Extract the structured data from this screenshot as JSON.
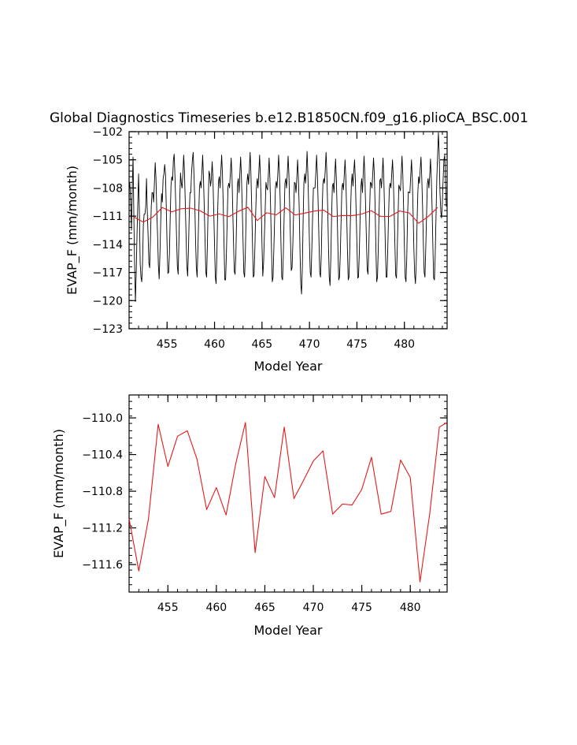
{
  "chart_data": [
    {
      "type": "line",
      "title": "Global Diagnostics Timeseries b.e12.B1850CN.f09_g16.plioCA_BSC.001",
      "xlabel": "Model Year",
      "ylabel": "EVAP_F (mm/month)",
      "xlim": [
        451.0,
        484.5
      ],
      "ylim": [
        -123,
        -102
      ],
      "xticks": [
        455,
        460,
        465,
        470,
        475,
        480
      ],
      "yticks": [
        -123,
        -120,
        -117,
        -114,
        -111,
        -108,
        -105,
        -102
      ],
      "series": [
        {
          "color": "#000000",
          "x_start": 451.0,
          "x_step": 0.08333,
          "values": [
            -108.0,
            -107.5,
            -109.5,
            -112.5,
            -108.0,
            -104.7,
            -111.0,
            -116.3,
            -120.1,
            -117.0,
            -113.0,
            -109.7,
            -106.5,
            -110.5,
            -116.0,
            -117.5,
            -118.0,
            -116.0,
            -112.0,
            -110.8,
            -110.8,
            -110.0,
            -107.0,
            -110.5,
            -113.0,
            -116.0,
            -116.5,
            -113.5,
            -110.0,
            -108.5,
            -108.5,
            -109.5,
            -107.5,
            -105.3,
            -107.0,
            -110.5,
            -113.0,
            -116.2,
            -117.7,
            -115.0,
            -111.5,
            -108.6,
            -109.5,
            -107.0,
            -106.5,
            -105.5,
            -106.5,
            -110.0,
            -114.0,
            -117.1,
            -117.0,
            -115.0,
            -111.0,
            -107.7,
            -106.8,
            -107.2,
            -105.0,
            -104.4,
            -106.8,
            -109.8,
            -113.3,
            -116.4,
            -117.2,
            -113.7,
            -109.5,
            -106.4,
            -107.5,
            -108.0,
            -106.5,
            -104.5,
            -106.2,
            -109.5,
            -113.0,
            -116.3,
            -117.4,
            -114.8,
            -111.0,
            -108.5,
            -108.5,
            -106.3,
            -105.0,
            -104.2,
            -106.5,
            -109.4,
            -113.5,
            -116.5,
            -117.5,
            -114.5,
            -111.0,
            -107.9,
            -107.3,
            -108.0,
            -106.4,
            -104.5,
            -106.8,
            -110.0,
            -113.5,
            -117.0,
            -117.5,
            -114.0,
            -109.7,
            -106.2,
            -106.6,
            -107.8,
            -107.0,
            -105.2,
            -107.0,
            -110.5,
            -114.0,
            -117.5,
            -118.2,
            -115.0,
            -110.5,
            -107.3,
            -106.8,
            -108.0,
            -106.2,
            -104.5,
            -106.5,
            -109.7,
            -114.0,
            -117.8,
            -117.8,
            -115.0,
            -111.5,
            -107.9,
            -107.5,
            -108.0,
            -106.5,
            -104.8,
            -106.5,
            -110.2,
            -113.8,
            -116.9,
            -117.2,
            -115.0,
            -111.0,
            -107.6,
            -107.0,
            -108.5,
            -106.5,
            -104.7,
            -106.8,
            -110.0,
            -113.5,
            -117.0,
            -117.5,
            -114.8,
            -110.5,
            -107.4,
            -106.5,
            -107.6,
            -106.0,
            -104.2,
            -106.5,
            -110.0,
            -114.0,
            -117.5,
            -117.3,
            -114.5,
            -110.8,
            -107.9,
            -107.0,
            -108.0,
            -106.3,
            -104.5,
            -106.7,
            -109.8,
            -114.0,
            -117.4,
            -116.0,
            -113.2,
            -110.5,
            -107.4,
            -108.0,
            -108.2,
            -106.7,
            -104.8,
            -107.0,
            -110.5,
            -114.5,
            -118.0,
            -117.5,
            -114.5,
            -111.2,
            -107.9,
            -107.3,
            -108.0,
            -106.5,
            -104.5,
            -106.3,
            -109.3,
            -114.0,
            -117.5,
            -117.8,
            -115.0,
            -111.0,
            -107.5,
            -107.0,
            -108.0,
            -106.5,
            -104.6,
            -106.5,
            -110.0,
            -113.5,
            -116.8,
            -116.5,
            -114.0,
            -110.5,
            -107.4,
            -107.5,
            -108.5,
            -107.0,
            -105.0,
            -106.9,
            -110.0,
            -114.5,
            -118.2,
            -119.3,
            -116.5,
            -111.5,
            -107.4,
            -106.5,
            -107.5,
            -106.2,
            -104.1,
            -106.5,
            -110.0,
            -114.0,
            -117.0,
            -117.5,
            -114.5,
            -111.0,
            -108.0,
            -108.0,
            -108.0,
            -106.5,
            -104.5,
            -106.5,
            -109.7,
            -113.5,
            -117.0,
            -117.5,
            -115.0,
            -110.5,
            -107.6,
            -107.0,
            -107.5,
            -106.0,
            -104.2,
            -106.5,
            -110.0,
            -114.0,
            -117.5,
            -118.4,
            -115.5,
            -111.0,
            -107.8,
            -107.5,
            -108.5,
            -106.6,
            -104.9,
            -107.0,
            -110.5,
            -114.5,
            -117.8,
            -117.5,
            -115.0,
            -111.5,
            -108.0,
            -107.5,
            -108.2,
            -106.6,
            -105.0,
            -107.0,
            -110.5,
            -114.5,
            -117.8,
            -117.5,
            -114.5,
            -110.5,
            -107.5,
            -106.5,
            -107.8,
            -106.3,
            -105.0,
            -107.0,
            -110.5,
            -114.0,
            -117.6,
            -117.5,
            -115.0,
            -111.3,
            -107.9,
            -107.0,
            -108.5,
            -106.5,
            -104.6,
            -106.6,
            -110.0,
            -113.5,
            -116.7,
            -117.2,
            -114.5,
            -110.5,
            -107.4,
            -107.5,
            -108.0,
            -106.5,
            -104.8,
            -106.5,
            -110.0,
            -114.5,
            -118.0,
            -117.5,
            -114.5,
            -110.5,
            -107.2,
            -107.0,
            -108.0,
            -106.6,
            -104.8,
            -107.0,
            -110.5,
            -114.5,
            -117.5,
            -117.5,
            -114.5,
            -111.0,
            -108.0,
            -107.5,
            -108.0,
            -106.5,
            -105.0,
            -107.0,
            -110.2,
            -114.0,
            -117.3,
            -117.6,
            -114.5,
            -111.0,
            -107.7,
            -108.0,
            -108.3,
            -106.5,
            -104.6,
            -106.6,
            -110.0,
            -114.2,
            -117.5,
            -118.0,
            -115.5,
            -111.0,
            -108.4,
            -108.5,
            -108.5,
            -106.7,
            -105.0,
            -107.0,
            -110.5,
            -114.5,
            -117.2,
            -118.2,
            -116.0,
            -111.8,
            -108.5,
            -106.8,
            -107.5,
            -106.0,
            -104.7,
            -107.0,
            -110.0,
            -114.0,
            -117.0,
            -117.5,
            -114.5,
            -111.0,
            -107.6,
            -107.0,
            -108.0,
            -106.7,
            -104.9,
            -107.0,
            -110.0,
            -114.2,
            -117.6,
            -117.8,
            -115.0,
            -111.0,
            -107.0,
            -104.5,
            -102.1,
            -104.3,
            -108.5,
            -110.5,
            -111.2,
            -109.5,
            -107.0,
            -105.0,
            -104.5,
            -107.5,
            -110.0
          ]
        },
        {
          "color": "#e41a1c",
          "x": [
            451.5,
            452.5,
            453.5,
            454.5,
            455.5,
            456.5,
            457.5,
            458.5,
            459.5,
            460.5,
            461.5,
            462.5,
            463.5,
            464.5,
            465.5,
            466.5,
            467.5,
            468.5,
            469.5,
            470.5,
            471.5,
            472.5,
            473.5,
            474.5,
            475.5,
            476.5,
            477.5,
            478.5,
            479.5,
            480.5,
            481.5,
            482.5,
            483.5
          ],
          "values": [
            -111.1,
            -111.63,
            -111.1,
            -110.08,
            -110.55,
            -110.21,
            -110.15,
            -110.44,
            -111.0,
            -110.77,
            -111.06,
            -110.5,
            -110.05,
            -111.47,
            -110.64,
            -110.87,
            -110.11,
            -110.88,
            -110.68,
            -110.47,
            -110.36,
            -111.04,
            -110.94,
            -110.95,
            -110.78,
            -110.42,
            -111.04,
            -111.02,
            -110.45,
            -110.65,
            -111.76,
            -111.05,
            -110.08
          ]
        }
      ]
    },
    {
      "type": "line",
      "title": "",
      "xlabel": "Model Year",
      "ylabel": "EVAP_F (mm/month)",
      "xlim": [
        451.0,
        483.8
      ],
      "ylim": [
        -111.9,
        -109.75
      ],
      "xticks": [
        455,
        460,
        465,
        470,
        475,
        480
      ],
      "yticks": [
        -111.6,
        -111.2,
        -110.8,
        -110.4,
        -110.0
      ],
      "ytick_labels": [
        "−111.6",
        "−111.2",
        "−110.8",
        "−110.4",
        "−110.0"
      ],
      "series": [
        {
          "color": "#e41a1c",
          "x": [
            451.0,
            452.0,
            453.0,
            454.0,
            455.0,
            456.0,
            457.0,
            458.0,
            459.0,
            460.0,
            461.0,
            462.0,
            463.0,
            464.0,
            465.0,
            466.0,
            467.0,
            468.0,
            469.0,
            470.0,
            471.0,
            472.0,
            473.0,
            474.0,
            475.0,
            476.0,
            477.0,
            478.0,
            479.0,
            480.0,
            481.0,
            482.0,
            483.0,
            483.8
          ],
          "values": [
            -111.1,
            -111.67,
            -111.1,
            -110.07,
            -110.53,
            -110.2,
            -110.14,
            -110.45,
            -111.0,
            -110.76,
            -111.06,
            -110.5,
            -110.05,
            -111.47,
            -110.64,
            -110.87,
            -110.1,
            -110.88,
            -110.68,
            -110.47,
            -110.36,
            -111.05,
            -110.94,
            -110.95,
            -110.78,
            -110.43,
            -111.05,
            -111.02,
            -110.46,
            -110.65,
            -111.79,
            -111.05,
            -110.1,
            -110.05
          ]
        }
      ]
    }
  ]
}
